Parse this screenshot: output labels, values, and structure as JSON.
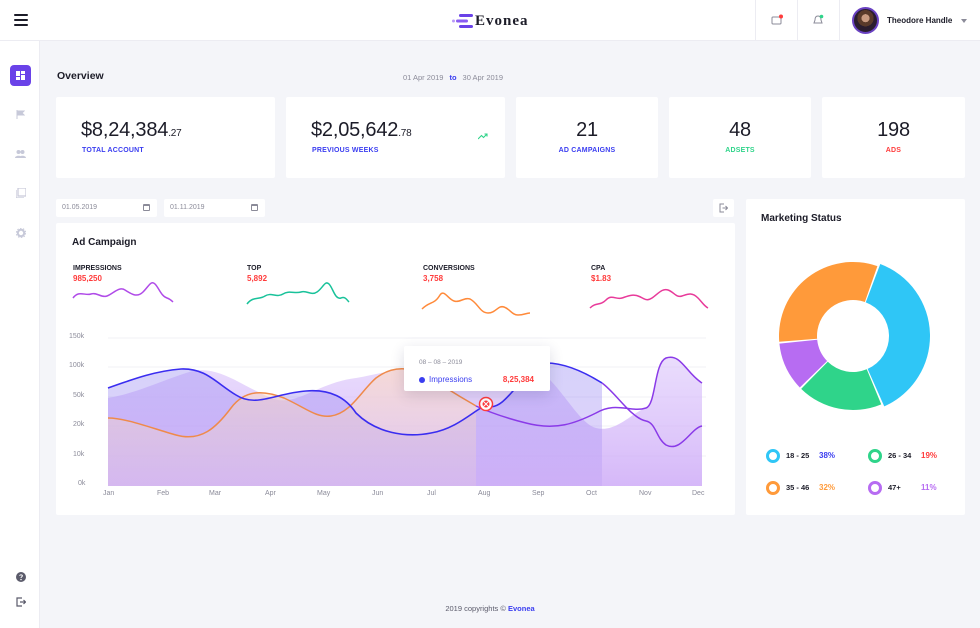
{
  "header": {
    "brand": "Evonea",
    "user_name": "Theodore Handle",
    "icons": [
      "menu-icon",
      "message-icon",
      "notification-icon",
      "chevron-down-icon"
    ]
  },
  "sidebar": {
    "items": [
      {
        "icon": "dashboard-icon",
        "active": true
      },
      {
        "icon": "flag-icon",
        "active": false
      },
      {
        "icon": "users-icon",
        "active": false
      },
      {
        "icon": "reports-icon",
        "active": false
      },
      {
        "icon": "settings-icon",
        "active": false
      }
    ],
    "bottom_items": [
      {
        "icon": "help-icon"
      },
      {
        "icon": "logout-icon"
      }
    ]
  },
  "overview": {
    "title": "Overview",
    "date_from": "01 Apr 2019",
    "date_to_word": "to",
    "date_to": "30 Apr 2019"
  },
  "stats": [
    {
      "whole": "$8,24,384",
      "decimal": ".27",
      "label": "TOTAL ACCOUNT",
      "color": "#3a3df0"
    },
    {
      "whole": "$2,05,642",
      "decimal": ".78",
      "label": "PREVIOUS WEEKS",
      "color": "#3a3df0"
    },
    {
      "value": "21",
      "label": "AD CAMPAIGNS",
      "color": "#3a3df0"
    },
    {
      "value": "48",
      "label": "ADSETS",
      "color": "#2fd48a"
    },
    {
      "value": "198",
      "label": "ADS",
      "color": "#ff3b3b"
    }
  ],
  "filters": {
    "start_date": "01.05.2019",
    "end_date": "01.11.2019"
  },
  "ad_campaign": {
    "title": "Ad Campaign",
    "metrics": [
      {
        "label": "IMPRESSIONS",
        "value": "985,250",
        "color": "#b04be8"
      },
      {
        "label": "TOP",
        "value": "5,892",
        "color": "#19c29a"
      },
      {
        "label": "CONVERSIONS",
        "value": "3,758",
        "color": "#ff8a3a"
      },
      {
        "label": "CPA",
        "value": "$1.83",
        "color": "#e83a9a"
      }
    ],
    "y_ticks": [
      "150k",
      "100k",
      "50k",
      "20k",
      "10k",
      "0k"
    ],
    "months": [
      "Jan",
      "Feb",
      "Mar",
      "Apr",
      "May",
      "Jun",
      "Jul",
      "Aug",
      "Sep",
      "Oct",
      "Nov",
      "Dec"
    ],
    "tooltip": {
      "date": "08 – 08 – 2019",
      "series": "Impressions",
      "value": "8,25,384"
    }
  },
  "marketing_status": {
    "title": "Marketing Status",
    "segments": [
      {
        "label": "18 - 25",
        "value": "38%",
        "percent": 38,
        "color": "#2fc6f6",
        "text_color": "#3a3df0"
      },
      {
        "label": "26 - 34",
        "value": "19%",
        "percent": 19,
        "color": "#2fd48a",
        "text_color": "#ff3b3b"
      },
      {
        "label": "35 - 46",
        "value": "32%",
        "percent": 32,
        "color": "#ff9a3a",
        "text_color": "#ff9a3a"
      },
      {
        "label": "47+",
        "value": "11%",
        "percent": 11,
        "color": "#b76cf2",
        "text_color": "#b76cf2"
      }
    ]
  },
  "footer": {
    "text": "2019 copyrights © ",
    "brand": "Evonea"
  }
}
